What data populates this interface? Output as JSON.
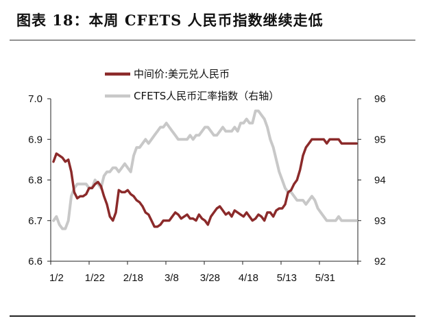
{
  "header": {
    "title": "图表 18：本周 CFETS 人民币指数继续走低"
  },
  "chart_data": {
    "type": "line",
    "title": "图表 18：本周 CFETS 人民币指数继续走低",
    "xlabel": "",
    "ylabel": "",
    "y_left_lim": [
      6.6,
      7.0
    ],
    "y_right_lim": [
      92,
      96
    ],
    "y_left_ticks": [
      "6.6",
      "6.7",
      "6.8",
      "6.9",
      "7.0"
    ],
    "y_right_ticks": [
      "92",
      "93",
      "94",
      "95",
      "96"
    ],
    "x_ticks": [
      "1/2",
      "1/22",
      "2/18",
      "3/8",
      "3/28",
      "4/18",
      "5/13",
      "5/31"
    ],
    "legend_position": "top-left",
    "grid": false,
    "series": [
      {
        "name": "中间价:美元兑人民币",
        "axis": "left",
        "color": "#8b2a2a",
        "values": [
          6.845,
          6.865,
          6.86,
          6.855,
          6.845,
          6.85,
          6.82,
          6.77,
          6.755,
          6.76,
          6.76,
          6.765,
          6.78,
          6.78,
          6.79,
          6.795,
          6.785,
          6.76,
          6.74,
          6.71,
          6.7,
          6.72,
          6.775,
          6.77,
          6.77,
          6.775,
          6.765,
          6.76,
          6.75,
          6.745,
          6.735,
          6.72,
          6.715,
          6.7,
          6.685,
          6.685,
          6.69,
          6.7,
          6.7,
          6.7,
          6.71,
          6.72,
          6.715,
          6.705,
          6.71,
          6.715,
          6.705,
          6.705,
          6.7,
          6.715,
          6.705,
          6.7,
          6.69,
          6.71,
          6.72,
          6.73,
          6.735,
          6.725,
          6.715,
          6.72,
          6.71,
          6.725,
          6.72,
          6.715,
          6.71,
          6.72,
          6.71,
          6.7,
          6.705,
          6.715,
          6.71,
          6.7,
          6.72,
          6.72,
          6.71,
          6.725,
          6.73,
          6.73,
          6.74,
          6.77,
          6.775,
          6.79,
          6.8,
          6.825,
          6.86,
          6.88,
          6.89,
          6.9,
          6.9,
          6.9,
          6.9,
          6.9,
          6.89,
          6.9,
          6.9,
          6.9,
          6.9,
          6.89,
          6.89,
          6.89,
          6.89,
          6.89,
          6.89
        ]
      },
      {
        "name": "CFETS人民币汇率指数（右轴）",
        "axis": "right",
        "color": "#c8c8c8",
        "values": [
          93.0,
          93.1,
          92.9,
          92.8,
          92.8,
          93.0,
          93.6,
          93.8,
          93.9,
          93.9,
          93.9,
          93.9,
          93.8,
          93.8,
          94.0,
          93.9,
          93.8,
          94.1,
          94.2,
          94.2,
          94.3,
          94.3,
          94.2,
          94.3,
          94.4,
          94.3,
          94.2,
          94.6,
          94.8,
          94.8,
          94.9,
          95.0,
          94.9,
          95.0,
          95.1,
          95.2,
          95.3,
          95.3,
          95.4,
          95.3,
          95.2,
          95.1,
          95.0,
          95.0,
          95.0,
          95.0,
          95.1,
          95.0,
          95.1,
          95.1,
          95.2,
          95.3,
          95.3,
          95.2,
          95.1,
          95.1,
          95.2,
          95.3,
          95.2,
          95.2,
          95.2,
          95.3,
          95.2,
          95.4,
          95.4,
          95.5,
          95.4,
          95.4,
          95.7,
          95.7,
          95.6,
          95.5,
          95.3,
          95.0,
          94.8,
          94.5,
          94.2,
          94.0,
          93.8,
          93.7,
          93.7,
          93.6,
          93.5,
          93.5,
          93.5,
          93.4,
          93.5,
          93.6,
          93.5,
          93.3,
          93.2,
          93.1,
          93.0,
          93.0,
          93.0,
          93.0,
          93.1,
          93.0,
          93.0,
          93.0,
          93.0,
          93.0,
          93.0
        ]
      }
    ]
  }
}
